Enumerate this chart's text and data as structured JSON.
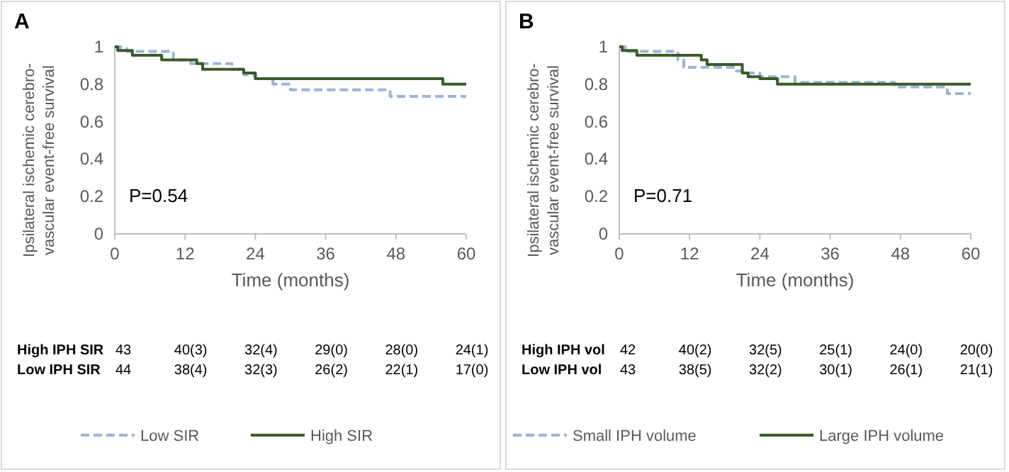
{
  "chart_data": [
    {
      "type": "step",
      "title": "A",
      "xlabel": "Time (months)",
      "ylabel": "Ipsilateral ischemic cerebro-\nvascular event-free survival",
      "xlim": [
        0,
        60
      ],
      "ylim": [
        0,
        1
      ],
      "xticks": [
        0,
        12,
        24,
        36,
        48,
        60
      ],
      "yticks": [
        0,
        0.2,
        0.4,
        0.6,
        0.8,
        1
      ],
      "legend": "bottom",
      "series": [
        {
          "name": "Low SIR",
          "color": "#9db3d6",
          "line_style": "dashed",
          "x": [
            0,
            1,
            2,
            10,
            13,
            20,
            22,
            24,
            27,
            30,
            47,
            60
          ],
          "values": [
            1,
            0.99,
            0.975,
            0.93,
            0.91,
            0.88,
            0.85,
            0.83,
            0.8,
            0.77,
            0.735,
            0.735
          ]
        },
        {
          "name": "High SIR",
          "color": "#3b5a2a",
          "line_style": "solid",
          "x": [
            0,
            0.5,
            3,
            8,
            14,
            15,
            22,
            24,
            56,
            60
          ],
          "values": [
            1,
            0.98,
            0.955,
            0.93,
            0.91,
            0.88,
            0.86,
            0.83,
            0.8,
            0.8
          ]
        }
      ],
      "annotations": [
        "P=0.54",
        "High IPH SIR",
        "43",
        "40(3)",
        "32(4)",
        "29(0)",
        "28(0)",
        "24(1)",
        "Low IPH SIR",
        "44",
        "38(4)",
        "32(3)",
        "26(2)",
        "22(1)",
        "17(0)"
      ]
    },
    {
      "type": "step",
      "title": "B",
      "xlabel": "Time (months)",
      "ylabel": "Ipsilateral ischemic cerebro-\nvascular event-free survival",
      "xlim": [
        0,
        60
      ],
      "ylim": [
        0,
        1
      ],
      "xticks": [
        0,
        12,
        24,
        36,
        48,
        60
      ],
      "yticks": [
        0,
        0.2,
        0.4,
        0.6,
        0.8,
        1
      ],
      "legend": "bottom",
      "series": [
        {
          "name": "Small IPH volume",
          "color": "#9db3d6",
          "line_style": "dashed",
          "x": [
            0,
            1,
            10,
            11,
            20,
            21,
            24,
            30,
            47,
            56,
            60
          ],
          "values": [
            1,
            0.975,
            0.93,
            0.89,
            0.87,
            0.86,
            0.84,
            0.81,
            0.785,
            0.75,
            0.75
          ]
        },
        {
          "name": "Large IPH volume",
          "color": "#3b5a2a",
          "line_style": "solid",
          "x": [
            0,
            0.5,
            3,
            14,
            15,
            21,
            22,
            24,
            27,
            60
          ],
          "values": [
            1,
            0.98,
            0.955,
            0.93,
            0.905,
            0.86,
            0.84,
            0.83,
            0.8,
            0.8
          ]
        }
      ],
      "annotations": [
        "P=0.71",
        "High IPH vol",
        "42",
        "40(2)",
        "32(5)",
        "25(1)",
        "24(0)",
        "20(0)",
        "Low IPH vol",
        "43",
        "38(5)",
        "32(2)",
        "30(1)",
        "26(1)",
        "21(1)"
      ]
    }
  ]
}
